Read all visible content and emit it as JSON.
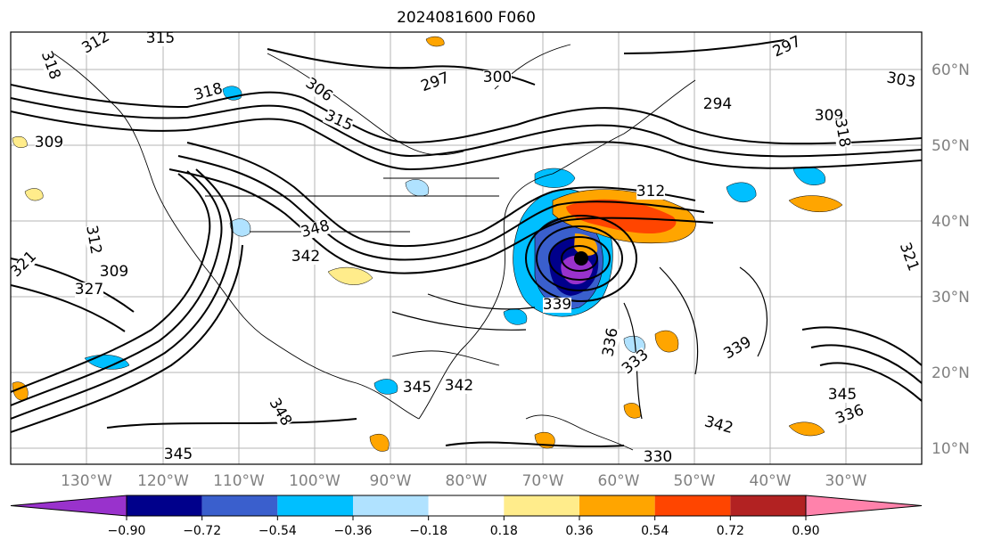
{
  "title": "2024081600 F060",
  "lon_labels": [
    "130°W",
    "120°W",
    "110°W",
    "100°W",
    "90°W",
    "80°W",
    "70°W",
    "60°W",
    "50°W",
    "40°W",
    "30°W"
  ],
  "lat_labels": [
    "60°N",
    "50°N",
    "40°N",
    "30°N",
    "20°N",
    "10°N"
  ],
  "contour_labels": [
    "312",
    "315",
    "318",
    "309",
    "306",
    "297",
    "300",
    "303",
    "294",
    "297",
    "318",
    "315",
    "309",
    "312",
    "309",
    "321",
    "318",
    "312",
    "327",
    "348",
    "342",
    "345",
    "339",
    "336",
    "333",
    "330",
    "342",
    "348",
    "345",
    "342",
    "345",
    "336",
    "339",
    "321"
  ],
  "colorbar": {
    "ticks": [
      "−0.90",
      "−0.72",
      "−0.54",
      "−0.36",
      "−0.18",
      "0.18",
      "0.36",
      "0.54",
      "0.72",
      "0.90"
    ],
    "colors": [
      "#9932cc",
      "#00008b",
      "#3a5fcd",
      "#00bfff",
      "#b0e2ff",
      "#ffffff",
      "#ffec8b",
      "#ffa500",
      "#ff4500",
      "#b22222",
      "#ff82ab"
    ]
  }
}
